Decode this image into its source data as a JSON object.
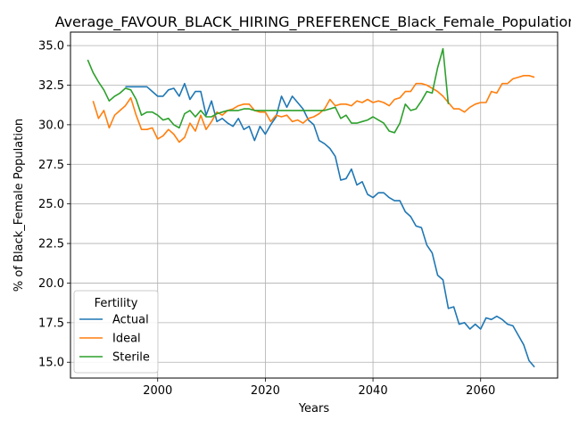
{
  "chart_data": {
    "type": "line",
    "title": "Average_FAVOUR_BLACK_HIRING_PREFERENCE_Black_Female_Population",
    "xlabel": "Years",
    "ylabel": "% of Black_Female Population",
    "xlim": [
      1983.8,
      2074.3
    ],
    "ylim": [
      14.0,
      35.85
    ],
    "xticks": [
      2000,
      2020,
      2040,
      2060
    ],
    "xtick_labels": [
      "2000",
      "2020",
      "2040",
      "2060"
    ],
    "yticks": [
      15.0,
      17.5,
      20.0,
      22.5,
      25.0,
      27.5,
      30.0,
      32.5,
      35.0
    ],
    "ytick_labels": [
      "15.0",
      "17.5",
      "20.0",
      "22.5",
      "25.0",
      "27.5",
      "30.0",
      "32.5",
      "35.0"
    ],
    "grid": true,
    "legend": {
      "title": "Fertility",
      "position": "lower-left"
    },
    "series": [
      {
        "name": "Actual",
        "color": "#1f77b4",
        "x": [
          1994,
          1995,
          1996,
          1997,
          1998,
          1999,
          2000,
          2001,
          2002,
          2003,
          2004,
          2005,
          2006,
          2007,
          2008,
          2009,
          2010,
          2011,
          2012,
          2013,
          2014,
          2015,
          2016,
          2017,
          2018,
          2019,
          2020,
          2021,
          2022,
          2023,
          2024,
          2025,
          2026,
          2027,
          2028,
          2029,
          2030,
          2031,
          2032,
          2033,
          2034,
          2035,
          2036,
          2037,
          2038,
          2039,
          2040,
          2041,
          2042,
          2043,
          2044,
          2045,
          2046,
          2047,
          2048,
          2049,
          2050,
          2051,
          2052,
          2053,
          2054,
          2055,
          2056,
          2057,
          2058,
          2059,
          2060,
          2061,
          2062,
          2063,
          2064,
          2065,
          2066,
          2067,
          2068,
          2069,
          2070
        ],
        "values": [
          32.4,
          32.4,
          32.4,
          32.4,
          32.4,
          32.1,
          31.8,
          31.8,
          32.2,
          32.3,
          31.8,
          32.6,
          31.6,
          32.1,
          32.1,
          30.6,
          31.5,
          30.2,
          30.4,
          30.1,
          29.9,
          30.4,
          29.7,
          29.9,
          29.0,
          29.9,
          29.4,
          30.0,
          30.5,
          31.8,
          31.1,
          31.8,
          31.4,
          31.0,
          30.3,
          30.0,
          29.0,
          28.8,
          28.5,
          28.0,
          26.5,
          26.6,
          27.2,
          26.2,
          26.4,
          25.6,
          25.4,
          25.7,
          25.7,
          25.4,
          25.2,
          25.2,
          24.5,
          24.2,
          23.6,
          23.5,
          22.4,
          21.9,
          20.5,
          20.2,
          18.4,
          18.5,
          17.4,
          17.5,
          17.1,
          17.4,
          17.1,
          17.8,
          17.7,
          17.9,
          17.7,
          17.4,
          17.3,
          16.7,
          16.1,
          15.1,
          14.7
        ]
      },
      {
        "name": "Ideal",
        "color": "#ff7f0e",
        "x": [
          1988,
          1989,
          1990,
          1991,
          1992,
          1993,
          1994,
          1995,
          1996,
          1997,
          1998,
          1999,
          2000,
          2001,
          2002,
          2003,
          2004,
          2005,
          2006,
          2007,
          2008,
          2009,
          2010,
          2011,
          2012,
          2013,
          2014,
          2015,
          2016,
          2017,
          2018,
          2019,
          2020,
          2021,
          2022,
          2023,
          2024,
          2025,
          2026,
          2027,
          2028,
          2029,
          2030,
          2031,
          2032,
          2033,
          2034,
          2035,
          2036,
          2037,
          2038,
          2039,
          2040,
          2041,
          2042,
          2043,
          2044,
          2045,
          2046,
          2047,
          2048,
          2049,
          2050,
          2051,
          2052,
          2053,
          2054,
          2055,
          2056,
          2057,
          2058,
          2059,
          2060,
          2061,
          2062,
          2063,
          2064,
          2065,
          2066,
          2067,
          2068,
          2069,
          2070
        ],
        "values": [
          31.5,
          30.4,
          30.9,
          29.8,
          30.6,
          30.9,
          31.2,
          31.7,
          30.6,
          29.7,
          29.7,
          29.8,
          29.1,
          29.3,
          29.7,
          29.4,
          28.9,
          29.2,
          30.1,
          29.6,
          30.6,
          29.7,
          30.2,
          30.8,
          30.6,
          30.9,
          31.0,
          31.2,
          31.3,
          31.3,
          30.9,
          30.8,
          30.8,
          30.2,
          30.6,
          30.5,
          30.6,
          30.2,
          30.3,
          30.1,
          30.4,
          30.5,
          30.7,
          31.0,
          31.6,
          31.2,
          31.3,
          31.3,
          31.2,
          31.5,
          31.4,
          31.6,
          31.4,
          31.5,
          31.4,
          31.2,
          31.6,
          31.7,
          32.1,
          32.1,
          32.6,
          32.6,
          32.5,
          32.3,
          32.1,
          31.8,
          31.4,
          31.0,
          31.0,
          30.8,
          31.1,
          31.3,
          31.4,
          31.4,
          32.1,
          32.0,
          32.6,
          32.6,
          32.9,
          33.0,
          33.1,
          33.1,
          33.0
        ]
      },
      {
        "name": "Sterile",
        "color": "#2ca02c",
        "x": [
          1987,
          1988,
          1989,
          1990,
          1991,
          1992,
          1993,
          1994,
          1995,
          1996,
          1997,
          1998,
          1999,
          2000,
          2001,
          2002,
          2003,
          2004,
          2005,
          2006,
          2007,
          2008,
          2009,
          2010,
          2011,
          2012,
          2013,
          2014,
          2015,
          2016,
          2017,
          2018,
          2019,
          2020,
          2021,
          2022,
          2023,
          2024,
          2025,
          2026,
          2027,
          2028,
          2029,
          2030,
          2031,
          2032,
          2033,
          2034,
          2035,
          2036,
          2037,
          2038,
          2039,
          2040,
          2041,
          2042,
          2043,
          2044,
          2045,
          2046,
          2047,
          2048,
          2049,
          2050,
          2051,
          2052,
          2053,
          2054
        ],
        "values": [
          34.1,
          33.3,
          32.7,
          32.2,
          31.5,
          31.8,
          32.0,
          32.3,
          32.2,
          31.6,
          30.6,
          30.8,
          30.8,
          30.6,
          30.3,
          30.4,
          30.0,
          29.8,
          30.7,
          30.9,
          30.5,
          30.9,
          30.5,
          30.5,
          30.7,
          30.8,
          30.9,
          30.9,
          30.9,
          31.0,
          31.0,
          30.9,
          30.9,
          30.9,
          30.9,
          30.9,
          30.9,
          30.9,
          30.9,
          30.9,
          30.9,
          30.9,
          30.9,
          30.9,
          30.9,
          31.0,
          31.1,
          30.4,
          30.6,
          30.1,
          30.1,
          30.2,
          30.3,
          30.5,
          30.3,
          30.1,
          29.6,
          29.5,
          30.1,
          31.3,
          30.9,
          31.0,
          31.5,
          32.1,
          32.0,
          33.6,
          34.8,
          31.3
        ]
      }
    ]
  }
}
